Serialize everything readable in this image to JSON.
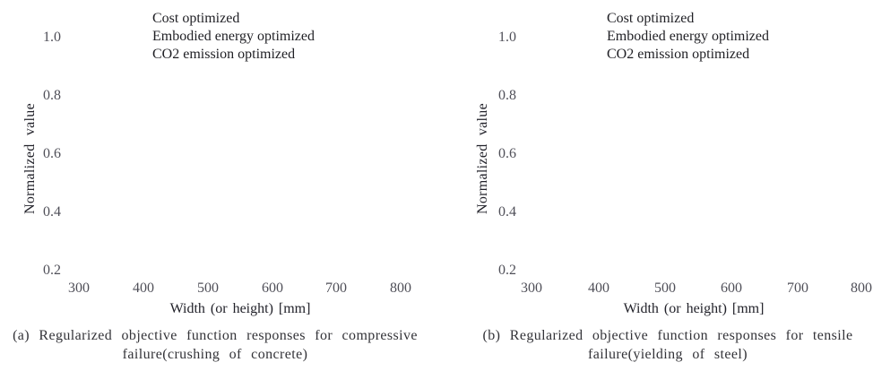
{
  "figure": {
    "panels": [
      {
        "id": "a",
        "legend": [
          "Cost optimized",
          "Embodied energy optimized",
          "CO2 emission optimized"
        ],
        "y_axis_label": "Normalized value",
        "x_axis_label": "Width (or height) [mm]",
        "y_ticks": [
          "1.0",
          "0.8",
          "0.6",
          "0.4",
          "0.2"
        ],
        "x_ticks": [
          "300",
          "400",
          "500",
          "600",
          "700",
          "800"
        ],
        "caption_line1": "(a) Regularized objective function responses for compressive",
        "caption_line2": "failure(crushing of concrete)"
      },
      {
        "id": "b",
        "legend": [
          "Cost optimized",
          "Embodied energy optimized",
          "CO2 emission optimized"
        ],
        "y_axis_label": "Normalized value",
        "x_axis_label": "Width (or height) [mm]",
        "y_ticks": [
          "1.0",
          "0.8",
          "0.6",
          "0.4",
          "0.2"
        ],
        "x_ticks": [
          "300",
          "400",
          "500",
          "600",
          "700",
          "800"
        ],
        "caption_line1": "(b) Regularized objective function responses for tensile",
        "caption_line2": "failure(yielding of steel)"
      }
    ]
  },
  "chart_data": [
    {
      "type": "line",
      "title": "",
      "xlabel": "Width (or height) [mm]",
      "ylabel": "Normalized value",
      "x_ticks": [
        300,
        400,
        500,
        600,
        700,
        800
      ],
      "y_ticks": [
        0.2,
        0.4,
        0.6,
        0.8,
        1.0
      ],
      "xlim": [
        260,
        830
      ],
      "ylim": [
        0.15,
        1.1
      ],
      "grid": false,
      "axis_lines_visible": false,
      "legend_position": "top-center",
      "legend_markers_visible": false,
      "series": [
        {
          "name": "Cost optimized",
          "x": [],
          "values": []
        },
        {
          "name": "Embodied energy optimized",
          "x": [],
          "values": []
        },
        {
          "name": "CO2 emission optimized",
          "x": [],
          "values": []
        }
      ],
      "data_points_visible": false,
      "caption": "(a) Regularized objective function responses for compressive failure(crushing of concrete)"
    },
    {
      "type": "line",
      "title": "",
      "xlabel": "Width (or height) [mm]",
      "ylabel": "Normalized value",
      "x_ticks": [
        300,
        400,
        500,
        600,
        700,
        800
      ],
      "y_ticks": [
        0.2,
        0.4,
        0.6,
        0.8,
        1.0
      ],
      "xlim": [
        260,
        830
      ],
      "ylim": [
        0.15,
        1.1
      ],
      "grid": false,
      "axis_lines_visible": false,
      "legend_position": "top-center",
      "legend_markers_visible": false,
      "series": [
        {
          "name": "Cost optimized",
          "x": [],
          "values": []
        },
        {
          "name": "Embodied energy optimized",
          "x": [],
          "values": []
        },
        {
          "name": "CO2 emission optimized",
          "x": [],
          "values": []
        }
      ],
      "data_points_visible": false,
      "caption": "(b) Regularized objective function responses for tensile failure(yielding of steel)"
    }
  ]
}
